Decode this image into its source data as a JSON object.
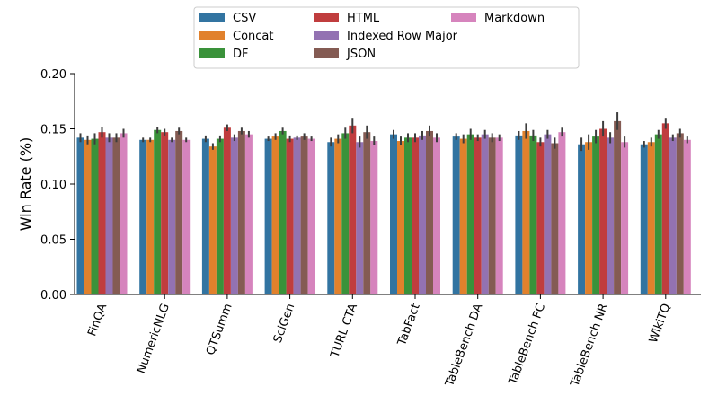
{
  "chart_data": {
    "type": "bar",
    "ylabel": "Win Rate (%)",
    "xlabel": "",
    "ylim": [
      0,
      0.2
    ],
    "yticks": [
      "0.00",
      "0.05",
      "0.10",
      "0.15",
      "0.20"
    ],
    "grid": false,
    "legend_position": "top-center",
    "categories": [
      "FinQA",
      "NumericNLG",
      "QTSumm",
      "SciGen",
      "TURL CTA",
      "TabFact",
      "TableBench DA",
      "TableBench FC",
      "TableBench NR",
      "WikiTQ"
    ],
    "series": [
      {
        "name": "CSV",
        "color": "#3274a1",
        "values": [
          0.142,
          0.14,
          0.141,
          0.141,
          0.138,
          0.145,
          0.143,
          0.144,
          0.136,
          0.136
        ]
      },
      {
        "name": "Concat",
        "color": "#e1812c",
        "values": [
          0.14,
          0.14,
          0.134,
          0.143,
          0.141,
          0.139,
          0.141,
          0.148,
          0.138,
          0.138
        ]
      },
      {
        "name": "DF",
        "color": "#3a923a",
        "values": [
          0.141,
          0.149,
          0.141,
          0.148,
          0.146,
          0.142,
          0.145,
          0.144,
          0.143,
          0.145
        ]
      },
      {
        "name": "HTML",
        "color": "#c03d3e",
        "values": [
          0.147,
          0.147,
          0.151,
          0.141,
          0.153,
          0.142,
          0.142,
          0.138,
          0.15,
          0.155
        ]
      },
      {
        "name": "Indexed Row Major",
        "color": "#9372b2",
        "values": [
          0.142,
          0.14,
          0.142,
          0.142,
          0.138,
          0.144,
          0.145,
          0.145,
          0.142,
          0.142
        ]
      },
      {
        "name": "JSON",
        "color": "#845b53",
        "values": [
          0.142,
          0.148,
          0.148,
          0.143,
          0.147,
          0.148,
          0.142,
          0.137,
          0.157,
          0.146
        ]
      },
      {
        "name": "Markdown",
        "color": "#d684bd",
        "values": [
          0.146,
          0.14,
          0.145,
          0.141,
          0.139,
          0.142,
          0.142,
          0.147,
          0.138,
          0.14
        ]
      }
    ],
    "errors": [
      [
        0.004,
        0.002,
        0.003,
        0.002,
        0.004,
        0.004,
        0.003,
        0.004,
        0.006,
        0.003
      ],
      [
        0.004,
        0.002,
        0.003,
        0.003,
        0.004,
        0.004,
        0.004,
        0.007,
        0.007,
        0.004
      ],
      [
        0.005,
        0.003,
        0.003,
        0.003,
        0.005,
        0.004,
        0.005,
        0.005,
        0.006,
        0.004
      ],
      [
        0.005,
        0.003,
        0.003,
        0.003,
        0.007,
        0.004,
        0.003,
        0.004,
        0.007,
        0.005
      ],
      [
        0.004,
        0.002,
        0.003,
        0.002,
        0.005,
        0.004,
        0.004,
        0.004,
        0.005,
        0.003
      ],
      [
        0.004,
        0.003,
        0.003,
        0.003,
        0.006,
        0.005,
        0.004,
        0.005,
        0.008,
        0.004
      ],
      [
        0.004,
        0.002,
        0.003,
        0.002,
        0.004,
        0.004,
        0.003,
        0.004,
        0.005,
        0.003
      ]
    ]
  }
}
